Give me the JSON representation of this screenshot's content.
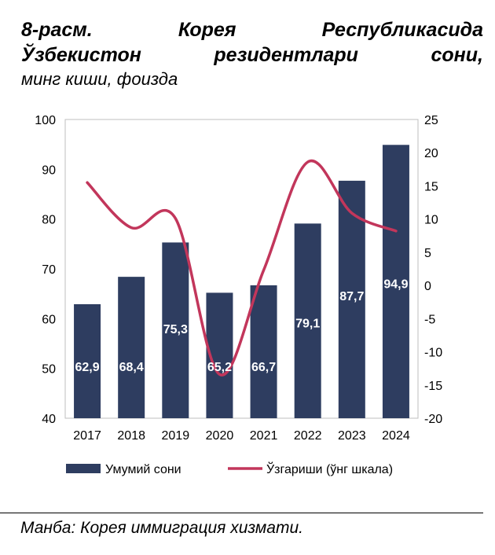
{
  "title": {
    "line1": [
      "8-расм.",
      "Корея",
      "Республикасида"
    ],
    "line2": [
      "Ўзбекистон",
      "резидентлари",
      "сони,"
    ],
    "subtitle": "минг киши, фоизда"
  },
  "source": "Манба: Корея иммиграция хизмати.",
  "chart_data": {
    "type": "bar",
    "categories": [
      "2017",
      "2018",
      "2019",
      "2020",
      "2021",
      "2022",
      "2023",
      "2024"
    ],
    "series": [
      {
        "name": "Умумий сони",
        "type": "bar",
        "axis": "left",
        "values": [
          62.9,
          68.4,
          75.3,
          65.2,
          66.7,
          79.1,
          87.7,
          94.9
        ],
        "labels": [
          "62,9",
          "68,4",
          "75,3",
          "65,2",
          "66,7",
          "79,1",
          "87,7",
          "94,9"
        ],
        "color": "#2E3D60"
      },
      {
        "name": "Ўзгариши (ўнг шкала)",
        "type": "line",
        "axis": "right",
        "values": [
          15.5,
          8.7,
          10.1,
          -13.4,
          2.3,
          18.6,
          10.9,
          8.2
        ],
        "color": "#C2365B"
      }
    ],
    "ylim": [
      40,
      100
    ],
    "yticks": [
      "100",
      "90",
      "80",
      "70",
      "60",
      "50",
      "40"
    ],
    "y2lim": [
      -20,
      25
    ],
    "y2ticks": [
      "25",
      "20",
      "15",
      "10",
      "5",
      "0",
      "-5",
      "-10",
      "-15",
      "-20"
    ],
    "legend": "bottom",
    "grid": false
  }
}
